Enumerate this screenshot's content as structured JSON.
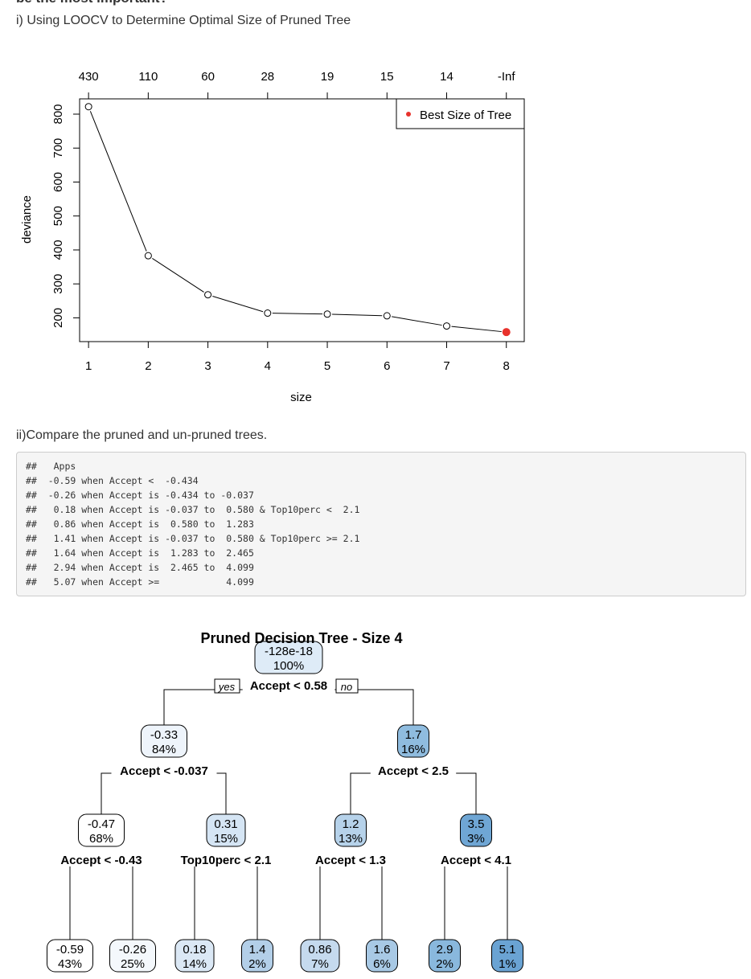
{
  "cut_heading": "be the most important?",
  "section1_title": "i) Using LOOCV to Determine Optimal Size of Pruned Tree",
  "section2_title": "ii)Compare the pruned and un-pruned trees.",
  "code_output": [
    "##   Apps",
    "##  -0.59 when Accept <  -0.434",
    "##  -0.26 when Accept is -0.434 to -0.037",
    "##   0.18 when Accept is -0.037 to  0.580 & Top10perc <  2.1",
    "##   0.86 when Accept is  0.580 to  1.283",
    "##   1.41 when Accept is -0.037 to  0.580 & Top10perc >= 2.1",
    "##   1.64 when Accept is  1.283 to  2.465",
    "##   2.94 when Accept is  2.465 to  4.099",
    "##   5.07 when Accept >=            4.099"
  ],
  "chart_data": [
    {
      "type": "line",
      "xlabel": "size",
      "ylabel": "deviance",
      "x": [
        1,
        2,
        3,
        4,
        5,
        6,
        7,
        8
      ],
      "y": [
        822,
        383,
        268,
        214,
        211,
        206,
        176,
        158
      ],
      "top_axis_labels": [
        "430",
        "110",
        "60",
        "28",
        "19",
        "15",
        "14",
        "-Inf"
      ],
      "xlim": [
        0.85,
        8.3
      ],
      "ylim": [
        130,
        845
      ],
      "yticks": [
        200,
        300,
        400,
        500,
        600,
        700,
        800
      ],
      "xticks": [
        1,
        2,
        3,
        4,
        5,
        6,
        7,
        8
      ],
      "best_point": {
        "x": 8,
        "y": 158
      },
      "legend": {
        "label": "Best Size of Tree",
        "position": "top-right"
      },
      "point_color": "#000000",
      "best_color": "#e8322c"
    },
    {
      "type": "tree",
      "title": "Pruned Decision Tree - Size 4",
      "yes_label": "yes",
      "no_label": "no",
      "nodes": [
        {
          "id": "n1",
          "value": "-128e-18",
          "pct": "100%",
          "split": "Accept < 0.58",
          "fill": "#deebf7"
        },
        {
          "id": "n2",
          "value": "-0.33",
          "pct": "84%",
          "split": "Accept < -0.037",
          "fill": "#eef4fb"
        },
        {
          "id": "n3",
          "value": "1.7",
          "pct": "16%",
          "split": "Accept < 2.5",
          "fill": "#8fbcdf"
        },
        {
          "id": "n4",
          "value": "-0.47",
          "pct": "68%",
          "split": "Accept < -0.43",
          "fill": "#ffffff"
        },
        {
          "id": "n5",
          "value": "0.31",
          "pct": "15%",
          "split": "Top10perc < 2.1",
          "fill": "#d5e5f4"
        },
        {
          "id": "n6",
          "value": "1.2",
          "pct": "13%",
          "split": "Accept < 1.3",
          "fill": "#b6d2ea"
        },
        {
          "id": "n7",
          "value": "3.5",
          "pct": "3%",
          "split": "Accept < 4.1",
          "fill": "#6fa6d4"
        },
        {
          "id": "l1",
          "value": "-0.59",
          "pct": "43%",
          "fill": "#ffffff"
        },
        {
          "id": "l2",
          "value": "-0.26",
          "pct": "25%",
          "fill": "#f4f8fc"
        },
        {
          "id": "l3",
          "value": "0.18",
          "pct": "14%",
          "fill": "#dbe8f5"
        },
        {
          "id": "l4",
          "value": "1.4",
          "pct": "2%",
          "fill": "#b3cfe8"
        },
        {
          "id": "l5",
          "value": "0.86",
          "pct": "7%",
          "fill": "#c5daee"
        },
        {
          "id": "l6",
          "value": "1.6",
          "pct": "6%",
          "fill": "#a8c9e5"
        },
        {
          "id": "l7",
          "value": "2.9",
          "pct": "2%",
          "fill": "#89b8dd"
        },
        {
          "id": "l8",
          "value": "5.1",
          "pct": "1%",
          "fill": "#6aa3d3"
        }
      ]
    }
  ]
}
